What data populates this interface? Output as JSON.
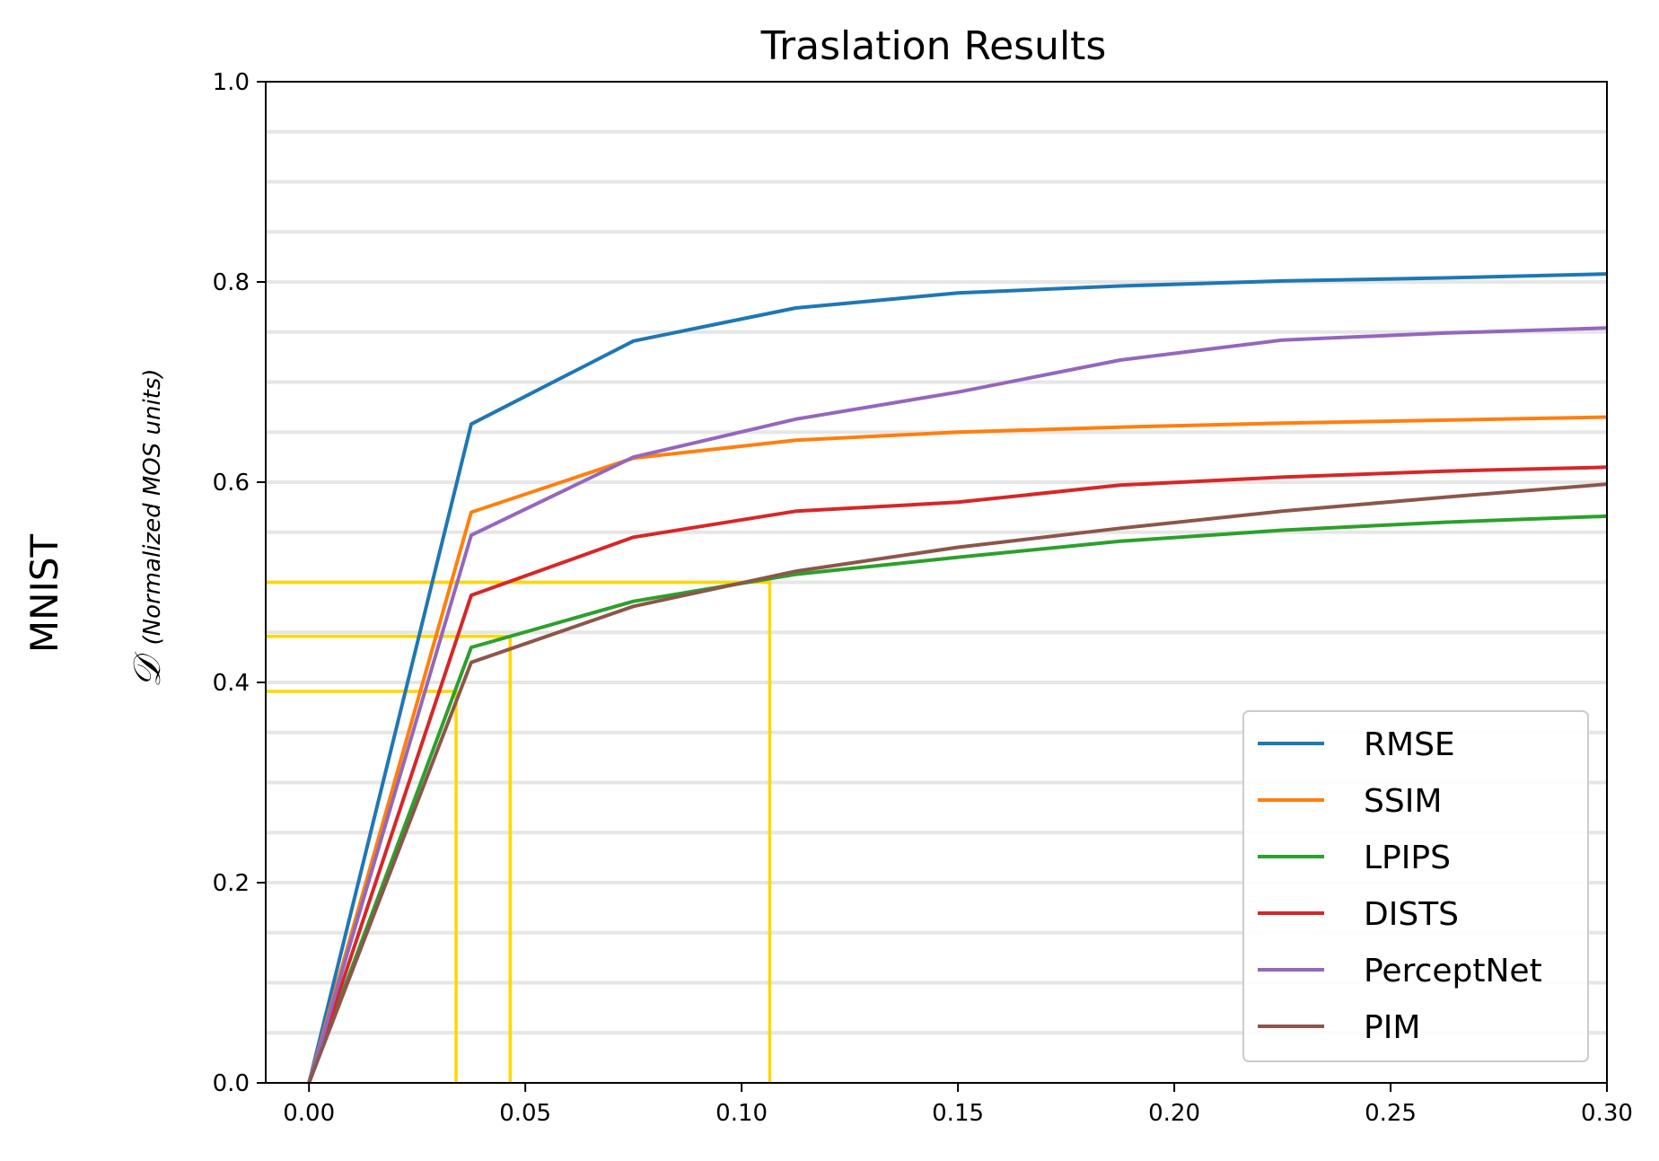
{
  "chart_data": {
    "type": "line",
    "title": "Traslation Results",
    "row_label": "MNIST",
    "ylabel_symbol": "𝒟",
    "ylabel_units": "(Normalized MOS units)",
    "xlim": [
      -0.01,
      0.3
    ],
    "ylim": [
      0.0,
      1.0
    ],
    "x_ticks": [
      "0.00",
      "0.05",
      "0.10",
      "0.15",
      "0.20",
      "0.25",
      "0.30"
    ],
    "y_ticks": [
      "0.0",
      "0.2",
      "0.4",
      "0.6",
      "0.8",
      "1.0"
    ],
    "grid": "horizontal, every 0.05",
    "legend_position": "lower-right",
    "x": [
      0.0,
      0.0375,
      0.075,
      0.1125,
      0.15,
      0.1875,
      0.225,
      0.2625,
      0.3
    ],
    "series": [
      {
        "name": "RMSE",
        "color": "#1f77b4",
        "values": [
          0.0,
          0.658,
          0.741,
          0.774,
          0.789,
          0.796,
          0.801,
          0.804,
          0.808
        ]
      },
      {
        "name": "SSIM",
        "color": "#ff7f0e",
        "values": [
          0.0,
          0.57,
          0.624,
          0.642,
          0.65,
          0.655,
          0.659,
          0.662,
          0.665
        ]
      },
      {
        "name": "LPIPS",
        "color": "#2ca02c",
        "values": [
          0.0,
          0.435,
          0.481,
          0.508,
          0.525,
          0.541,
          0.552,
          0.56,
          0.566
        ]
      },
      {
        "name": "DISTS",
        "color": "#d62728",
        "values": [
          0.0,
          0.487,
          0.545,
          0.571,
          0.58,
          0.597,
          0.605,
          0.611,
          0.615
        ]
      },
      {
        "name": "PerceptNet",
        "color": "#9467bd",
        "values": [
          0.0,
          0.547,
          0.625,
          0.663,
          0.69,
          0.722,
          0.742,
          0.749,
          0.754
        ]
      },
      {
        "name": "PIM",
        "color": "#8c564b",
        "values": [
          0.0,
          0.42,
          0.476,
          0.511,
          0.535,
          0.554,
          0.571,
          0.585,
          0.598
        ]
      }
    ],
    "reference_lines": {
      "color": "#ffd700",
      "segments": [
        {
          "x": 0.034,
          "y": 0.391
        },
        {
          "x": 0.0465,
          "y": 0.446
        },
        {
          "x": 0.1065,
          "y": 0.5
        }
      ]
    }
  }
}
